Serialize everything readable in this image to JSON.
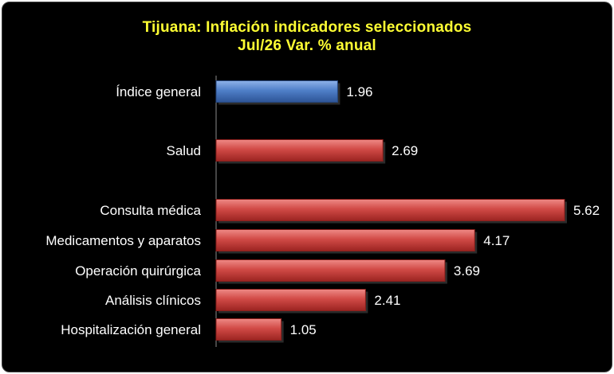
{
  "chart_data": {
    "type": "bar",
    "orientation": "horizontal",
    "title": "Tijuana: Inflación indicadores seleccionados",
    "subtitle": "Jul/26 Var. % anual",
    "categories": [
      "Índice general",
      "Salud",
      "Consulta médica",
      "Medicamentos y aparatos",
      "Operación quirúrgica",
      "Análisis clínicos",
      "Hospitalización general"
    ],
    "values": [
      1.96,
      2.69,
      5.62,
      4.17,
      3.69,
      2.41,
      1.05
    ],
    "value_labels": [
      "1.96",
      "2.69",
      "5.62",
      "4.17",
      "3.69",
      "2.41",
      "1.05"
    ],
    "colors": [
      "#4f7fc8",
      "#d14a46",
      "#d14a46",
      "#d14a46",
      "#d14a46",
      "#d14a46",
      "#d14a46"
    ],
    "xlim": [
      0,
      6
    ],
    "grid": false,
    "legend": "none",
    "background": "#000000",
    "title_color": "#ffff33",
    "label_color": "#ffffff"
  }
}
